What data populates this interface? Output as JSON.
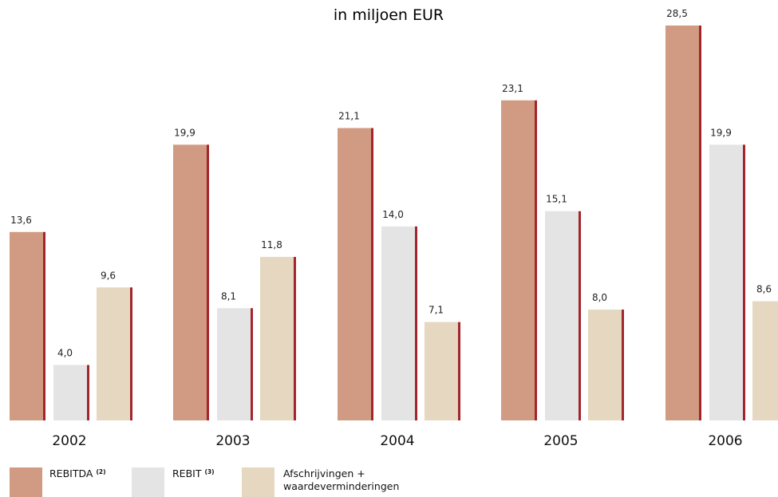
{
  "chart_data": {
    "type": "bar",
    "title": "in miljoen EUR",
    "categories": [
      "2002",
      "2003",
      "2004",
      "2005",
      "2006"
    ],
    "series": [
      {
        "name": "REBITDA",
        "note": "(2)",
        "color": "#d19a82",
        "values": [
          13.6,
          19.9,
          21.1,
          23.1,
          28.5
        ],
        "labels": [
          "13,6",
          "19,9",
          "21,1",
          "23,1",
          "28,5"
        ]
      },
      {
        "name": "REBIT",
        "note": "(3)",
        "color": "#e4e4e4",
        "values": [
          4.0,
          8.1,
          14.0,
          15.1,
          19.9
        ],
        "labels": [
          "4,0",
          "8,1",
          "14,0",
          "15,1",
          "19,9"
        ]
      },
      {
        "name": "Afschrijvingen + waardeverminderingen",
        "note": "",
        "color": "#e5d7c0",
        "values": [
          9.6,
          11.8,
          7.1,
          8.0,
          8.6
        ],
        "labels": [
          "9,6",
          "11,8",
          "7,1",
          "8,0",
          "8,6"
        ]
      }
    ],
    "ylim": [
      0,
      28.5
    ],
    "grid": false,
    "legend": "bottom-left",
    "edge_color": "#a3252c"
  },
  "legend_lines": [
    [
      "REBITDA"
    ],
    [
      "REBIT"
    ],
    [
      "Afschrijvingen +",
      "waardeverminderingen"
    ]
  ]
}
